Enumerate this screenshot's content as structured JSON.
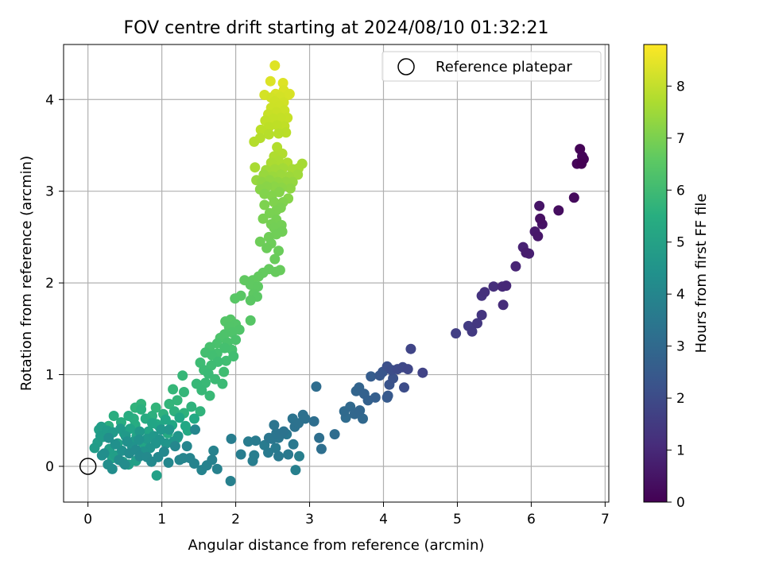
{
  "chart_data": {
    "type": "scatter",
    "title": "FOV centre drift starting at 2024/08/10 01:32:21",
    "xlabel": "Angular distance from reference (arcmin)",
    "ylabel": "Rotation from reference (arcmin)",
    "colorbar_label": "Hours from first FF file",
    "colormap": "viridis",
    "xlim": [
      -0.33,
      7.05
    ],
    "ylim": [
      -0.39,
      4.6
    ],
    "clim": [
      0,
      8.8
    ],
    "x_ticks": [
      "0",
      "1",
      "2",
      "3",
      "4",
      "5",
      "6",
      "7"
    ],
    "y_ticks": [
      "0",
      "1",
      "2",
      "3",
      "4"
    ],
    "colorbar_ticks": [
      "0",
      "1",
      "2",
      "3",
      "4",
      "5",
      "6",
      "7",
      "8"
    ],
    "grid": true,
    "legend": {
      "position": "top-right",
      "entries": [
        "Reference platepar"
      ]
    },
    "reference_point": {
      "x": 0,
      "y": 0
    },
    "points": [
      [
        6.68,
        3.3,
        0.0
      ],
      [
        6.66,
        3.46,
        0.04
      ],
      [
        6.71,
        3.35,
        0.08
      ],
      [
        6.62,
        3.3,
        0.12
      ],
      [
        6.69,
        3.38,
        0.16
      ],
      [
        6.58,
        2.93,
        0.22
      ],
      [
        6.37,
        2.79,
        0.3
      ],
      [
        6.12,
        2.7,
        0.38
      ],
      [
        6.15,
        2.64,
        0.44
      ],
      [
        6.11,
        2.84,
        0.5
      ],
      [
        6.09,
        2.51,
        0.56
      ],
      [
        6.05,
        2.56,
        0.62
      ],
      [
        5.93,
        2.33,
        0.7
      ],
      [
        5.97,
        2.32,
        0.76
      ],
      [
        5.89,
        2.39,
        0.82
      ],
      [
        5.79,
        2.18,
        0.9
      ],
      [
        5.66,
        1.97,
        0.98
      ],
      [
        5.61,
        1.96,
        1.04
      ],
      [
        5.62,
        1.76,
        1.1
      ],
      [
        5.49,
        1.96,
        1.18
      ],
      [
        5.37,
        1.9,
        1.24
      ],
      [
        5.33,
        1.86,
        1.3
      ],
      [
        5.33,
        1.65,
        1.36
      ],
      [
        5.27,
        1.56,
        1.42
      ],
      [
        5.2,
        1.47,
        1.48
      ],
      [
        5.15,
        1.53,
        1.54
      ],
      [
        4.98,
        1.45,
        1.62
      ],
      [
        4.53,
        1.02,
        1.72
      ],
      [
        4.37,
        1.28,
        1.8
      ],
      [
        4.33,
        1.06,
        1.86
      ],
      [
        4.26,
        1.08,
        1.92
      ],
      [
        4.19,
        1.06,
        1.98
      ],
      [
        4.28,
        0.86,
        2.04
      ],
      [
        4.11,
        1.05,
        2.1
      ],
      [
        4.05,
        1.09,
        2.16
      ],
      [
        4.13,
        0.96,
        2.22
      ],
      [
        4.08,
        0.89,
        2.28
      ],
      [
        3.99,
        1.03,
        2.34
      ],
      [
        3.95,
        0.99,
        2.4
      ],
      [
        4.06,
        0.77,
        2.46
      ],
      [
        4.05,
        0.75,
        2.52
      ],
      [
        3.83,
        0.98,
        2.58
      ],
      [
        3.89,
        0.75,
        2.64
      ],
      [
        3.79,
        0.72,
        2.7
      ],
      [
        3.74,
        0.79,
        2.76
      ],
      [
        3.67,
        0.86,
        2.8
      ],
      [
        3.63,
        0.82,
        2.84
      ],
      [
        3.68,
        0.61,
        2.88
      ],
      [
        3.61,
        0.57,
        2.92
      ],
      [
        3.72,
        0.52,
        2.96
      ],
      [
        3.55,
        0.65,
        3.0
      ],
      [
        3.47,
        0.6,
        3.04
      ],
      [
        3.49,
        0.53,
        3.08
      ],
      [
        3.34,
        0.35,
        3.12
      ],
      [
        3.09,
        0.87,
        3.14
      ],
      [
        3.06,
        0.49,
        3.18
      ],
      [
        3.13,
        0.31,
        3.2
      ],
      [
        3.16,
        0.19,
        3.22
      ],
      [
        2.94,
        0.52,
        3.26
      ],
      [
        2.91,
        0.56,
        3.28
      ],
      [
        2.85,
        0.47,
        3.3
      ],
      [
        2.8,
        0.43,
        3.32
      ],
      [
        2.77,
        0.52,
        3.34
      ],
      [
        2.65,
        0.38,
        3.36
      ],
      [
        2.61,
        0.35,
        3.38
      ],
      [
        2.52,
        0.45,
        3.4
      ],
      [
        2.55,
        0.36,
        3.42
      ],
      [
        2.49,
        0.3,
        3.44
      ],
      [
        2.45,
        0.31,
        3.46
      ],
      [
        2.58,
        0.31,
        3.48
      ],
      [
        2.69,
        0.35,
        3.5
      ],
      [
        2.78,
        0.24,
        3.52
      ],
      [
        2.71,
        0.13,
        3.54
      ],
      [
        2.58,
        0.11,
        3.56
      ],
      [
        2.54,
        0.2,
        3.58
      ],
      [
        2.44,
        0.15,
        3.6
      ],
      [
        2.39,
        0.23,
        3.62
      ],
      [
        2.27,
        0.28,
        3.64
      ],
      [
        2.17,
        0.27,
        3.66
      ],
      [
        2.07,
        0.13,
        3.68
      ],
      [
        1.94,
        0.3,
        3.7
      ],
      [
        2.25,
        0.12,
        3.72
      ],
      [
        2.23,
        0.06,
        3.74
      ],
      [
        2.86,
        0.11,
        3.76
      ],
      [
        2.81,
        -0.04,
        3.78
      ],
      [
        1.93,
        -0.16,
        3.8
      ],
      [
        1.75,
        -0.03,
        3.82
      ],
      [
        1.68,
        0.07,
        3.84
      ],
      [
        1.7,
        0.17,
        3.86
      ],
      [
        1.61,
        0.01,
        3.88
      ],
      [
        1.54,
        -0.04,
        3.9
      ],
      [
        1.44,
        0.03,
        3.92
      ],
      [
        1.38,
        0.09,
        3.94
      ],
      [
        1.29,
        0.09,
        3.96
      ],
      [
        1.24,
        0.07,
        3.98
      ],
      [
        1.45,
        0.4,
        4.0
      ],
      [
        1.34,
        0.22,
        4.02
      ],
      [
        1.18,
        0.22,
        4.04
      ],
      [
        1.09,
        0.04,
        4.06
      ],
      [
        1.03,
        0.16,
        4.08
      ],
      [
        0.95,
        0.1,
        4.1
      ],
      [
        0.86,
        0.05,
        4.12
      ],
      [
        0.8,
        0.1,
        4.14
      ],
      [
        0.7,
        0.11,
        4.16
      ],
      [
        0.65,
        0.18,
        4.18
      ],
      [
        0.56,
        0.14,
        4.2
      ],
      [
        0.5,
        0.02,
        4.22
      ],
      [
        0.42,
        0.07,
        4.24
      ],
      [
        0.33,
        -0.03,
        4.26
      ],
      [
        0.27,
        0.02,
        4.28
      ],
      [
        0.22,
        0.14,
        4.3
      ],
      [
        0.19,
        0.12,
        4.32
      ],
      [
        0.28,
        0.31,
        4.34
      ],
      [
        0.37,
        0.24,
        4.36
      ],
      [
        0.46,
        0.17,
        4.38
      ],
      [
        0.53,
        0.27,
        4.4
      ],
      [
        0.6,
        0.21,
        4.42
      ],
      [
        0.69,
        0.29,
        4.44
      ],
      [
        0.75,
        0.16,
        4.46
      ],
      [
        0.84,
        0.2,
        4.48
      ],
      [
        0.92,
        0.25,
        4.5
      ],
      [
        0.97,
        0.29,
        4.52
      ],
      [
        1.06,
        0.25,
        4.54
      ],
      [
        1.16,
        0.27,
        4.56
      ],
      [
        1.22,
        0.33,
        4.58
      ],
      [
        1.1,
        0.4,
        4.6
      ],
      [
        0.99,
        0.4,
        4.62
      ],
      [
        0.89,
        0.33,
        4.64
      ],
      [
        0.8,
        0.3,
        4.66
      ],
      [
        0.7,
        0.38,
        4.68
      ],
      [
        0.62,
        0.27,
        4.7
      ],
      [
        0.51,
        0.33,
        4.72
      ],
      [
        0.44,
        0.41,
        4.74
      ],
      [
        0.34,
        0.37,
        4.76
      ],
      [
        0.26,
        0.39,
        4.78
      ],
      [
        0.17,
        0.33,
        4.8
      ],
      [
        0.09,
        0.2,
        4.82
      ],
      [
        0.13,
        0.26,
        4.84
      ],
      [
        0.18,
        0.43,
        4.86
      ],
      [
        0.29,
        0.19,
        4.88
      ],
      [
        0.37,
        0.12,
        4.9
      ],
      [
        0.47,
        0.05,
        4.92
      ],
      [
        0.55,
        0.02,
        4.94
      ],
      [
        0.65,
        0.06,
        4.96
      ],
      [
        0.93,
        -0.1,
        4.98
      ],
      [
        0.15,
        0.4,
        5.0
      ],
      [
        0.2,
        0.32,
        5.02
      ],
      [
        0.33,
        0.09,
        5.04
      ],
      [
        0.4,
        0.25,
        5.06
      ],
      [
        0.49,
        0.36,
        5.08
      ],
      [
        0.57,
        0.41,
        5.1
      ],
      [
        0.66,
        0.33,
        5.12
      ],
      [
        0.74,
        0.26,
        5.14
      ],
      [
        0.82,
        0.38,
        5.16
      ],
      [
        0.87,
        0.47,
        5.18
      ],
      [
        0.97,
        0.43,
        5.2
      ],
      [
        1.05,
        0.51,
        5.22
      ],
      [
        1.14,
        0.45,
        5.24
      ],
      [
        1.24,
        0.53,
        5.26
      ],
      [
        1.32,
        0.44,
        5.28
      ],
      [
        1.44,
        0.52,
        5.3
      ],
      [
        1.35,
        0.39,
        5.32
      ],
      [
        1.21,
        0.31,
        5.34
      ],
      [
        1.08,
        0.36,
        5.36
      ],
      [
        0.93,
        0.46,
        5.38
      ],
      [
        0.78,
        0.52,
        5.4
      ],
      [
        0.64,
        0.45,
        5.42
      ],
      [
        0.55,
        0.55,
        5.44
      ],
      [
        0.45,
        0.48,
        5.46
      ],
      [
        0.35,
        0.55,
        5.48
      ],
      [
        0.28,
        0.44,
        5.5
      ],
      [
        0.62,
        0.52,
        5.52
      ],
      [
        0.72,
        0.62,
        5.54
      ],
      [
        0.87,
        0.55,
        5.56
      ],
      [
        1.02,
        0.57,
        5.58
      ],
      [
        1.17,
        0.6,
        5.6
      ],
      [
        1.3,
        0.58,
        5.62
      ],
      [
        1.4,
        0.65,
        5.64
      ],
      [
        1.52,
        0.6,
        5.66
      ],
      [
        0.64,
        0.64,
        5.68
      ],
      [
        0.72,
        0.68,
        5.7
      ],
      [
        0.92,
        0.64,
        5.72
      ],
      [
        1.1,
        0.68,
        5.74
      ],
      [
        1.21,
        0.72,
        5.76
      ],
      [
        1.3,
        0.81,
        5.78
      ],
      [
        1.15,
        0.84,
        5.8
      ],
      [
        1.28,
        0.99,
        5.82
      ],
      [
        1.47,
        0.9,
        5.84
      ],
      [
        1.54,
        0.83,
        5.86
      ],
      [
        1.65,
        0.77,
        5.88
      ],
      [
        1.59,
        0.91,
        5.9
      ],
      [
        1.63,
        1.01,
        5.92
      ],
      [
        1.72,
        0.95,
        5.94
      ],
      [
        1.82,
        0.9,
        5.96
      ],
      [
        1.57,
        1.05,
        5.98
      ],
      [
        1.52,
        1.13,
        6.0
      ],
      [
        1.67,
        1.1,
        6.02
      ],
      [
        1.76,
        1.14,
        6.04
      ],
      [
        1.84,
        1.03,
        6.06
      ],
      [
        1.87,
        1.15,
        6.08
      ],
      [
        1.97,
        1.2,
        6.1
      ],
      [
        1.68,
        1.21,
        6.12
      ],
      [
        1.59,
        1.24,
        6.14
      ],
      [
        1.75,
        1.23,
        6.16
      ],
      [
        1.85,
        1.29,
        6.18
      ],
      [
        1.95,
        1.27,
        6.2
      ],
      [
        1.65,
        1.3,
        6.22
      ],
      [
        1.75,
        1.34,
        6.24
      ],
      [
        1.89,
        1.35,
        6.26
      ],
      [
        2.0,
        1.38,
        6.28
      ],
      [
        1.79,
        1.4,
        6.3
      ],
      [
        1.85,
        1.44,
        6.32
      ],
      [
        1.95,
        1.46,
        6.34
      ],
      [
        2.05,
        1.49,
        6.36
      ],
      [
        1.91,
        1.52,
        6.38
      ],
      [
        2.0,
        1.55,
        6.4
      ],
      [
        1.86,
        1.58,
        6.42
      ],
      [
        1.93,
        1.6,
        6.44
      ],
      [
        2.2,
        1.59,
        6.46
      ],
      [
        1.99,
        1.83,
        6.48
      ],
      [
        2.07,
        1.86,
        6.5
      ],
      [
        2.2,
        1.81,
        6.52
      ],
      [
        2.29,
        1.85,
        6.54
      ],
      [
        2.24,
        1.88,
        6.56
      ],
      [
        2.3,
        1.96,
        6.58
      ],
      [
        2.2,
        1.98,
        6.6
      ],
      [
        2.12,
        2.03,
        6.62
      ],
      [
        2.23,
        2.03,
        6.64
      ],
      [
        2.31,
        2.07,
        6.66
      ],
      [
        2.37,
        2.11,
        6.68
      ],
      [
        2.45,
        2.15,
        6.7
      ],
      [
        2.54,
        2.12,
        6.72
      ],
      [
        2.6,
        2.14,
        6.74
      ],
      [
        2.53,
        2.26,
        6.76
      ],
      [
        2.58,
        2.35,
        6.78
      ],
      [
        2.42,
        2.38,
        6.8
      ],
      [
        2.48,
        2.43,
        6.82
      ],
      [
        2.33,
        2.45,
        6.84
      ],
      [
        2.45,
        2.5,
        6.86
      ],
      [
        2.55,
        2.53,
        6.88
      ],
      [
        2.63,
        2.56,
        6.9
      ],
      [
        2.52,
        2.6,
        6.92
      ],
      [
        2.62,
        2.63,
        6.94
      ],
      [
        2.48,
        2.64,
        6.96
      ],
      [
        2.55,
        2.69,
        6.98
      ],
      [
        2.37,
        2.7,
        7.0
      ],
      [
        2.46,
        2.76,
        7.02
      ],
      [
        2.55,
        2.79,
        7.04
      ],
      [
        2.61,
        2.82,
        7.06
      ],
      [
        2.39,
        2.85,
        7.08
      ],
      [
        2.52,
        2.88,
        7.1
      ],
      [
        2.64,
        2.88,
        7.12
      ],
      [
        2.39,
        2.97,
        7.14
      ],
      [
        2.49,
        2.95,
        7.16
      ],
      [
        2.59,
        2.99,
        7.18
      ],
      [
        2.71,
        2.92,
        7.2
      ],
      [
        2.33,
        3.02,
        7.22
      ],
      [
        2.42,
        3.05,
        7.24
      ],
      [
        2.52,
        3.05,
        7.26
      ],
      [
        2.62,
        3.04,
        7.28
      ],
      [
        2.74,
        3.03,
        7.3
      ],
      [
        2.35,
        3.1,
        7.32
      ],
      [
        2.46,
        3.12,
        7.34
      ],
      [
        2.57,
        3.1,
        7.36
      ],
      [
        2.68,
        3.1,
        7.38
      ],
      [
        2.77,
        3.1,
        7.4
      ],
      [
        2.28,
        3.12,
        7.42
      ],
      [
        2.38,
        3.18,
        7.44
      ],
      [
        2.5,
        3.16,
        7.46
      ],
      [
        2.61,
        3.18,
        7.48
      ],
      [
        2.72,
        3.16,
        7.5
      ],
      [
        2.84,
        3.18,
        7.52
      ],
      [
        2.41,
        3.23,
        7.54
      ],
      [
        2.53,
        3.24,
        7.56
      ],
      [
        2.64,
        3.25,
        7.58
      ],
      [
        2.77,
        3.24,
        7.6
      ],
      [
        2.9,
        3.3,
        7.62
      ],
      [
        2.85,
        3.25,
        7.64
      ],
      [
        2.26,
        3.26,
        7.66
      ],
      [
        2.48,
        3.31,
        7.68
      ],
      [
        2.58,
        3.33,
        7.7
      ],
      [
        2.7,
        3.31,
        7.72
      ],
      [
        2.52,
        3.38,
        7.74
      ],
      [
        2.63,
        3.41,
        7.76
      ],
      [
        2.56,
        3.48,
        7.78
      ],
      [
        2.25,
        3.54,
        7.8
      ],
      [
        2.33,
        3.58,
        7.82
      ],
      [
        2.45,
        3.62,
        7.84
      ],
      [
        2.58,
        3.63,
        7.86
      ],
      [
        2.68,
        3.64,
        7.88
      ],
      [
        2.34,
        3.67,
        7.9
      ],
      [
        2.45,
        3.7,
        7.92
      ],
      [
        2.56,
        3.72,
        7.94
      ],
      [
        2.66,
        3.71,
        7.96
      ],
      [
        2.4,
        3.77,
        7.98
      ],
      [
        2.51,
        3.79,
        8.0
      ],
      [
        2.61,
        3.8,
        8.02
      ],
      [
        2.7,
        3.8,
        8.04
      ],
      [
        2.44,
        3.84,
        8.06
      ],
      [
        2.55,
        3.86,
        8.08
      ],
      [
        2.66,
        3.88,
        8.1
      ],
      [
        2.48,
        3.91,
        8.12
      ],
      [
        2.59,
        3.93,
        8.14
      ],
      [
        2.53,
        3.98,
        8.16
      ],
      [
        2.65,
        3.97,
        8.18
      ],
      [
        2.48,
        4.02,
        8.2
      ],
      [
        2.6,
        4.03,
        8.22
      ],
      [
        2.39,
        4.05,
        8.24
      ],
      [
        2.71,
        4.05,
        8.26
      ],
      [
        2.54,
        4.06,
        8.28
      ],
      [
        2.65,
        4.1,
        8.3
      ],
      [
        2.73,
        4.06,
        8.32
      ],
      [
        2.47,
        4.2,
        8.34
      ],
      [
        2.64,
        4.18,
        8.36
      ],
      [
        2.53,
        4.37,
        8.38
      ]
    ]
  }
}
